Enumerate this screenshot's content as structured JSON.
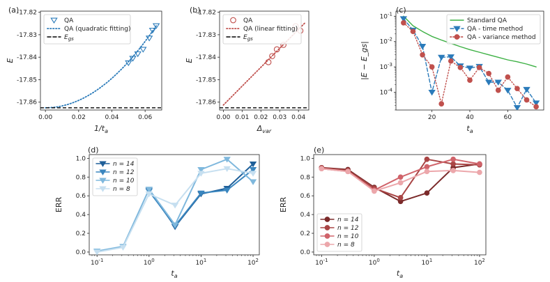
{
  "chart_data": [
    {
      "panel": "(a)",
      "type": "scatter",
      "xlabel": "1/t_a",
      "ylabel": "E",
      "xlim": [
        -0.003,
        0.07
      ],
      "ylim": [
        -17.8635,
        -17.8195
      ],
      "xticks": [
        0.0,
        0.02,
        0.04,
        0.06
      ],
      "xticklabels": [
        "0.00",
        "0.02",
        "0.04",
        "0.06"
      ],
      "yticks": [
        -17.86,
        -17.85,
        -17.84,
        -17.83,
        -17.82
      ],
      "yticklabels": [
        "-17.86",
        "-17.85",
        "-17.84",
        "-17.83",
        "-17.82"
      ],
      "legend_position": "top-left",
      "series": [
        {
          "name": "QA",
          "style": "marker-tri-down",
          "color": "#2b7bba",
          "x": [
            0.05,
            0.0526,
            0.0556,
            0.0588,
            0.0625,
            0.0645,
            0.0667
          ],
          "y": [
            -17.8425,
            -17.8405,
            -17.8385,
            -17.8365,
            -17.8315,
            -17.828,
            -17.826
          ]
        },
        {
          "name": "QA (quadratic fitting)",
          "style": "dotted",
          "color": "#2b7bba",
          "fit": "quadratic",
          "a": -17.8625,
          "b": 0.0,
          "c": 8.2,
          "x_range": [
            0.0,
            0.0667
          ]
        },
        {
          "name": "E_gs",
          "style": "dashed",
          "color": "#000000",
          "y_const": -17.8625
        }
      ]
    },
    {
      "panel": "(b)",
      "type": "scatter",
      "xlabel": "Δ_var",
      "ylabel": "E",
      "xlim": [
        -0.002,
        0.0455
      ],
      "ylim": [
        -17.8635,
        -17.8195
      ],
      "xticks": [
        0.0,
        0.01,
        0.02,
        0.03,
        0.04
      ],
      "xticklabels": [
        "0.00",
        "0.01",
        "0.02",
        "0.03",
        "0.04"
      ],
      "yticks": [
        -17.86,
        -17.85,
        -17.84,
        -17.83,
        -17.82
      ],
      "yticklabels": [
        "-17.86",
        "-17.85",
        "-17.84",
        "-17.83",
        "-17.82"
      ],
      "legend_position": "top-left",
      "series": [
        {
          "name": "QA",
          "style": "marker-circle-open",
          "color": "#c0504d",
          "x": [
            0.024,
            0.026,
            0.0285,
            0.032,
            0.0385,
            0.041
          ],
          "y": [
            -17.8422,
            -17.8395,
            -17.8365,
            -17.8345,
            -17.8262,
            -17.8282
          ]
        },
        {
          "name": "QA (linear fitting)",
          "style": "dotted",
          "color": "#c0504d",
          "fit": "linear",
          "a": -17.8613,
          "b": 0.8417,
          "x_range": [
            0.0,
            0.0436
          ]
        },
        {
          "name": "E_gs",
          "style": "dashed",
          "color": "#000000",
          "y_const": -17.8625
        }
      ]
    },
    {
      "panel": "(c)",
      "type": "line",
      "xlabel": "t_a",
      "ylabel": "|E − E_gs|",
      "yscale": "log",
      "xlim": [
        1,
        79
      ],
      "ylim_exp": [
        -4.7,
        -0.8
      ],
      "xticks": [
        20,
        40,
        60
      ],
      "xticklabels": [
        "20",
        "40",
        "60"
      ],
      "yticks_exp": [
        -1,
        -2,
        -3,
        -4
      ],
      "yticklabels": [
        "10^-1",
        "10^-2",
        "10^-3",
        "10^-4"
      ],
      "legend_position": "top-right",
      "series": [
        {
          "name": "Standard QA",
          "style": "solid",
          "color": "#3cb043",
          "x": [
            5,
            10,
            15,
            20,
            25,
            30,
            35,
            40,
            45,
            50,
            55,
            60,
            65,
            70,
            75
          ],
          "y": [
            0.1,
            0.042,
            0.025,
            0.016,
            0.0115,
            0.0085,
            0.0063,
            0.0048,
            0.0038,
            0.003,
            0.0024,
            0.0019,
            0.0016,
            0.0013,
            0.001
          ]
        },
        {
          "name": "QA - time method",
          "style": "dashed-tri-down",
          "color": "#2b7bba",
          "x": [
            5,
            10,
            15,
            20,
            25,
            30,
            35,
            40,
            45,
            50,
            55,
            60,
            65,
            70,
            75
          ],
          "y": [
            0.08,
            0.028,
            0.0065,
            0.0001,
            0.0024,
            0.0025,
            0.0011,
            0.0009,
            0.00105,
            0.00025,
            0.00025,
            0.00012,
            2.5e-05,
            0.00013,
            3.8e-05
          ]
        },
        {
          "name": "QA - variance method",
          "style": "dotted-circle",
          "color": "#c0504d",
          "x": [
            5,
            10,
            15,
            20,
            25,
            30,
            35,
            40,
            45,
            50,
            55,
            60,
            65,
            70,
            75
          ],
          "y": [
            0.055,
            0.025,
            0.003,
            0.001,
            3.5e-05,
            0.0017,
            0.00095,
            0.0003,
            0.00095,
            0.00055,
            0.00012,
            0.0004,
            0.00014,
            5e-05,
            2.7e-05
          ]
        }
      ]
    },
    {
      "panel": "(d)",
      "type": "line",
      "xlabel": "t_a",
      "ylabel": "ERR",
      "xscale": "log",
      "xlim_exp": [
        -1.15,
        2.12
      ],
      "ylim": [
        -0.03,
        1.04
      ],
      "xticks_exp": [
        -1,
        0,
        1,
        2
      ],
      "xticklabels": [
        "10^-1",
        "10^0",
        "10^1",
        "10^2"
      ],
      "yticks": [
        0.0,
        0.2,
        0.4,
        0.6,
        0.8,
        1.0
      ],
      "yticklabels": [
        "0.0",
        "0.2",
        "0.4",
        "0.6",
        "0.8",
        "1.0"
      ],
      "legend_position": "top-left",
      "series": [
        {
          "name": "n = 14",
          "color": "#1f5f99",
          "x": [
            1,
            3.16,
            10,
            31.6,
            100
          ],
          "y": [
            0.66,
            0.27,
            0.62,
            0.68,
            0.94
          ]
        },
        {
          "name": "n = 12",
          "color": "#3a86bf",
          "x": [
            1,
            3.16,
            10,
            31.6,
            100
          ],
          "y": [
            0.65,
            0.28,
            0.63,
            0.66,
            0.88
          ]
        },
        {
          "name": "n = 10",
          "color": "#7fb8dd",
          "x": [
            0.1,
            0.316,
            1,
            3.16,
            10,
            31.6,
            100
          ],
          "y": [
            0.01,
            0.06,
            0.67,
            0.29,
            0.88,
            0.99,
            0.75
          ]
        },
        {
          "name": "n = 8",
          "color": "#c6dff0",
          "x": [
            0.1,
            0.316,
            1,
            3.16,
            10,
            31.6,
            100
          ],
          "y": [
            0.0,
            0.05,
            0.62,
            0.5,
            0.84,
            0.89,
            0.84
          ]
        }
      ]
    },
    {
      "panel": "(e)",
      "type": "line",
      "xlabel": "t_a",
      "ylabel": "ERR",
      "xscale": "log",
      "xlim_exp": [
        -1.15,
        2.12
      ],
      "ylim": [
        -0.03,
        1.04
      ],
      "xticks_exp": [
        -1,
        0,
        1,
        2
      ],
      "xticklabels": [
        "10^-1",
        "10^0",
        "10^1",
        "10^2"
      ],
      "yticks": [
        0.0,
        0.2,
        0.4,
        0.6,
        0.8,
        1.0
      ],
      "yticklabels": [
        "0.0",
        "0.2",
        "0.4",
        "0.6",
        "0.8",
        "1.0"
      ],
      "legend_position": "bottom-left",
      "series": [
        {
          "name": "n = 14",
          "color": "#7b2a2a",
          "x": [
            0.1,
            0.316,
            1,
            3.16,
            10,
            31.6,
            100
          ],
          "y": [
            0.9,
            0.88,
            0.69,
            0.54,
            0.63,
            0.9,
            0.94
          ]
        },
        {
          "name": "n = 12",
          "color": "#a94545",
          "x": [
            0.1,
            0.316,
            1,
            3.16,
            10,
            31.6,
            100
          ],
          "y": [
            0.9,
            0.87,
            0.68,
            0.58,
            0.99,
            0.94,
            0.93
          ]
        },
        {
          "name": "n = 10",
          "color": "#d0636a",
          "x": [
            0.1,
            0.316,
            1,
            3.16,
            10,
            31.6,
            100
          ],
          "y": [
            0.89,
            0.86,
            0.66,
            0.8,
            0.91,
            0.99,
            0.94
          ]
        },
        {
          "name": "n = 8",
          "color": "#eca7ab",
          "x": [
            0.1,
            0.316,
            1,
            3.16,
            10,
            31.6,
            100
          ],
          "y": [
            0.89,
            0.86,
            0.65,
            0.74,
            0.86,
            0.87,
            0.85
          ]
        }
      ]
    }
  ]
}
